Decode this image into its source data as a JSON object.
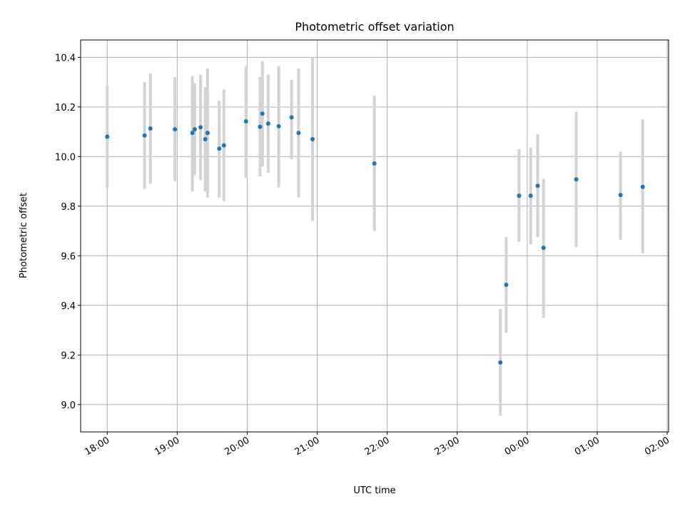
{
  "chart_data": {
    "type": "scatter",
    "title": "Photometric offset variation",
    "xlabel": "UTC time",
    "ylabel": "Photometric offset",
    "grid": true,
    "x_axis_hours": [
      17.62,
      26.02
    ],
    "ylim": [
      8.89,
      10.47
    ],
    "x_ticks": [
      {
        "label": "18:00",
        "hour": 18
      },
      {
        "label": "19:00",
        "hour": 19
      },
      {
        "label": "20:00",
        "hour": 20
      },
      {
        "label": "21:00",
        "hour": 21
      },
      {
        "label": "22:00",
        "hour": 22
      },
      {
        "label": "23:00",
        "hour": 23
      },
      {
        "label": "00:00",
        "hour": 24
      },
      {
        "label": "01:00",
        "hour": 25
      },
      {
        "label": "02:00",
        "hour": 26
      }
    ],
    "y_ticks": [
      "9.0",
      "9.2",
      "9.4",
      "9.6",
      "9.8",
      "10.0",
      "10.2",
      "10.4"
    ],
    "points": [
      {
        "time": "18:00",
        "y": 10.08,
        "lo": 9.875,
        "hi": 10.285
      },
      {
        "time": "18:32",
        "y": 10.085,
        "lo": 9.87,
        "hi": 10.3
      },
      {
        "time": "18:37",
        "y": 10.113,
        "lo": 9.89,
        "hi": 10.335
      },
      {
        "time": "18:58",
        "y": 10.11,
        "lo": 9.9,
        "hi": 10.32
      },
      {
        "time": "19:13",
        "y": 10.095,
        "lo": 9.86,
        "hi": 10.325
      },
      {
        "time": "19:15",
        "y": 10.11,
        "lo": 9.925,
        "hi": 10.295
      },
      {
        "time": "19:20",
        "y": 10.118,
        "lo": 9.905,
        "hi": 10.33
      },
      {
        "time": "19:24",
        "y": 10.07,
        "lo": 9.86,
        "hi": 10.28
      },
      {
        "time": "19:26",
        "y": 10.095,
        "lo": 9.835,
        "hi": 10.355
      },
      {
        "time": "19:36",
        "y": 10.032,
        "lo": 9.835,
        "hi": 10.225
      },
      {
        "time": "19:40",
        "y": 10.045,
        "lo": 9.82,
        "hi": 10.27
      },
      {
        "time": "19:59",
        "y": 10.142,
        "lo": 9.915,
        "hi": 10.365
      },
      {
        "time": "20:11",
        "y": 10.12,
        "lo": 9.92,
        "hi": 10.32
      },
      {
        "time": "20:13",
        "y": 10.173,
        "lo": 9.96,
        "hi": 10.385
      },
      {
        "time": "20:18",
        "y": 10.133,
        "lo": 9.935,
        "hi": 10.33
      },
      {
        "time": "20:27",
        "y": 10.122,
        "lo": 9.875,
        "hi": 10.365
      },
      {
        "time": "20:38",
        "y": 10.158,
        "lo": 9.99,
        "hi": 10.31
      },
      {
        "time": "20:44",
        "y": 10.095,
        "lo": 9.835,
        "hi": 10.355
      },
      {
        "time": "20:56",
        "y": 10.07,
        "lo": 9.74,
        "hi": 10.4
      },
      {
        "time": "21:49",
        "y": 9.972,
        "lo": 9.7,
        "hi": 10.245
      },
      {
        "time": "23:37",
        "y": 9.17,
        "lo": 8.955,
        "hi": 9.385
      },
      {
        "time": "23:42",
        "y": 9.483,
        "lo": 9.29,
        "hi": 9.675
      },
      {
        "time": "23:53",
        "y": 9.842,
        "lo": 9.655,
        "hi": 10.03
      },
      {
        "time": "00:03",
        "y": 9.842,
        "lo": 9.645,
        "hi": 10.035
      },
      {
        "time": "00:09",
        "y": 9.882,
        "lo": 9.675,
        "hi": 10.09
      },
      {
        "time": "00:14",
        "y": 9.632,
        "lo": 9.35,
        "hi": 9.91
      },
      {
        "time": "00:42",
        "y": 9.908,
        "lo": 9.635,
        "hi": 10.18
      },
      {
        "time": "01:20",
        "y": 9.845,
        "lo": 9.665,
        "hi": 10.02
      },
      {
        "time": "01:39",
        "y": 9.878,
        "lo": 9.61,
        "hi": 10.15
      }
    ]
  }
}
